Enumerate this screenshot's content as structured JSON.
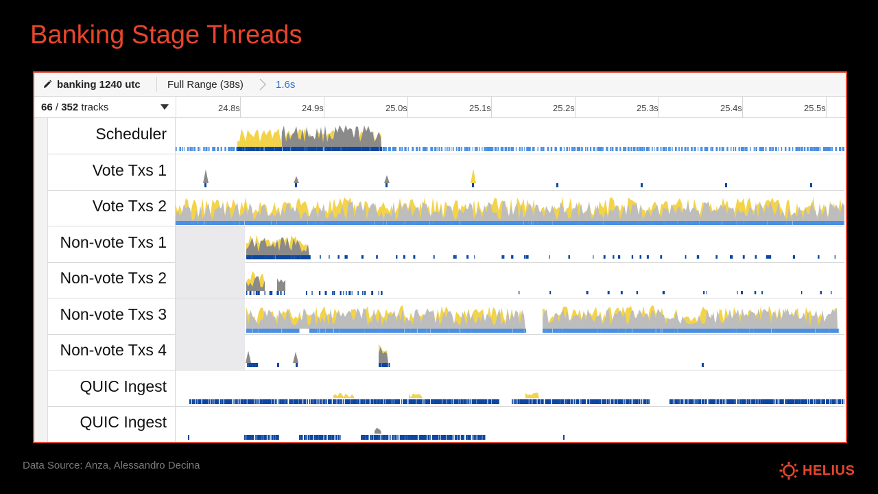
{
  "slide": {
    "title": "Banking Stage Threads",
    "source": "Data Source: Anza, Alessandro Decina"
  },
  "brand": {
    "name": "HELIUS",
    "color": "#e8452c"
  },
  "profiler": {
    "profile_name": "banking 1240 utc",
    "full_range": "Full Range (38s)",
    "selection": "1.6s",
    "tracks_visible": "66",
    "tracks_total": "352",
    "tracks_word": "tracks",
    "tracks_sep": " / ",
    "ticks": [
      "24.8s",
      "24.9s",
      "25.0s",
      "25.1s",
      "25.2s",
      "25.3s",
      "25.4s",
      "25.5s"
    ]
  },
  "colors": {
    "cpu_gray": "#bdbdbd",
    "cpu_dark": "#8a8a8a",
    "cpu_yellow": "#f3d34a",
    "marker_blue": "#0d47a1",
    "marker_light": "#4a90e2"
  },
  "tracks": [
    {
      "name": "Scheduler",
      "icon": "none"
    },
    {
      "name": "Vote Txs 1",
      "icon": "none"
    },
    {
      "name": "Vote Txs 2",
      "icon": "none"
    },
    {
      "name": "Non-vote Txs 1",
      "icon": "none"
    },
    {
      "name": "Non-vote Txs 2",
      "icon": "none"
    },
    {
      "name": "Non-vote Txs 3",
      "icon": "none"
    },
    {
      "name": "Non-vote Txs 4",
      "icon": "none"
    },
    {
      "name": "QUIC Ingest",
      "icon": "none"
    },
    {
      "name": "QUIC Ingest",
      "icon": "none"
    }
  ]
}
